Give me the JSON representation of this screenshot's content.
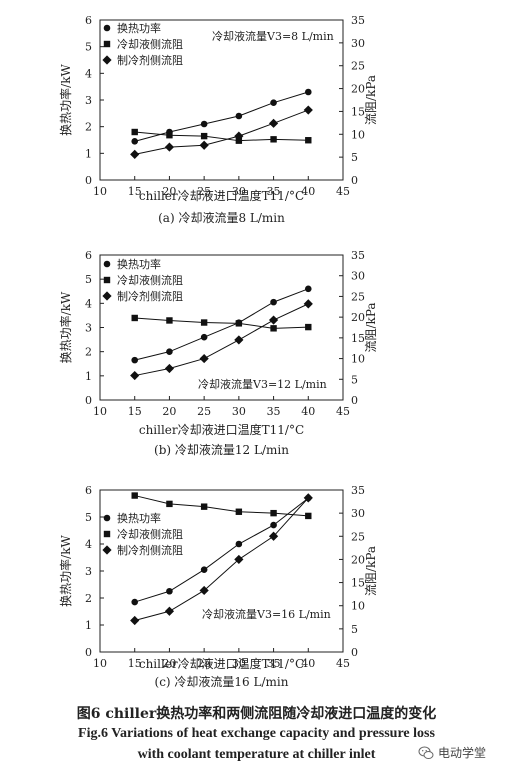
{
  "chart_data": [
    {
      "type": "line",
      "subtitle": "(a) 冷却液流量8 L/min",
      "xlabel": "chiller冷却液进口温度T11/°C",
      "ylabel_left": "换热功率/kW",
      "ylabel_right": "流阻/kPa",
      "annotation": "冷却液流量V3=8 L/min",
      "x": [
        15,
        20,
        25,
        30,
        35,
        40
      ],
      "xlim": [
        10,
        45
      ],
      "ylim_left": [
        0,
        6
      ],
      "ylim_right": [
        0,
        35
      ],
      "x_ticks": [
        "10",
        "15",
        "20",
        "25",
        "30",
        "35",
        "40",
        "45"
      ],
      "yl_ticks": [
        "0",
        "1",
        "2",
        "3",
        "4",
        "5",
        "6"
      ],
      "yr_ticks": [
        "0",
        "5",
        "10",
        "15",
        "20",
        "25",
        "30",
        "35"
      ],
      "legend_position": "top-left",
      "series": [
        {
          "name": "换热功率",
          "marker": "circle",
          "axis": "left",
          "values": [
            1.45,
            1.8,
            2.1,
            2.4,
            2.9,
            3.3
          ]
        },
        {
          "name": "冷却液侧流阻",
          "marker": "square",
          "axis": "right",
          "values": [
            10.5,
            9.8,
            9.6,
            8.6,
            8.9,
            8.7
          ]
        },
        {
          "name": "制冷剂侧流阻",
          "marker": "diamond",
          "axis": "right",
          "values": [
            5.6,
            7.2,
            7.6,
            9.6,
            12.4,
            15.3
          ]
        }
      ]
    },
    {
      "type": "line",
      "subtitle": "(b) 冷却液流量12 L/min",
      "xlabel": "chiller冷却液进口温度T11/°C",
      "ylabel_left": "换热功率/kW",
      "ylabel_right": "流阻/kPa",
      "annotation": "冷却液流量V3=12 L/min",
      "x": [
        15,
        20,
        25,
        30,
        35,
        40
      ],
      "xlim": [
        10,
        45
      ],
      "ylim_left": [
        0,
        6
      ],
      "ylim_right": [
        0,
        35
      ],
      "x_ticks": [
        "10",
        "15",
        "20",
        "25",
        "30",
        "35",
        "40",
        "45"
      ],
      "yl_ticks": [
        "0",
        "1",
        "2",
        "3",
        "4",
        "5",
        "6"
      ],
      "yr_ticks": [
        "0",
        "5",
        "10",
        "15",
        "20",
        "25",
        "30",
        "35"
      ],
      "legend_position": "top-left",
      "series": [
        {
          "name": "换热功率",
          "marker": "circle",
          "axis": "left",
          "values": [
            1.65,
            2.0,
            2.6,
            3.2,
            4.05,
            4.6
          ]
        },
        {
          "name": "冷却液侧流阻",
          "marker": "square",
          "axis": "right",
          "values": [
            19.8,
            19.2,
            18.7,
            18.5,
            17.3,
            17.6
          ]
        },
        {
          "name": "制冷剂侧流阻",
          "marker": "diamond",
          "axis": "right",
          "values": [
            5.9,
            7.6,
            10.0,
            14.5,
            19.3,
            23.2
          ]
        }
      ]
    },
    {
      "type": "line",
      "subtitle": "(c) 冷却液流量16 L/min",
      "xlabel": "chiller冷却液进口温度T11/°C",
      "ylabel_left": "换热功率/kW",
      "ylabel_right": "流阻/kPa",
      "annotation": "冷却液流量V3=16 L/min",
      "x": [
        15,
        20,
        25,
        30,
        35,
        40
      ],
      "xlim": [
        10,
        45
      ],
      "ylim_left": [
        0,
        6
      ],
      "ylim_right": [
        0,
        35
      ],
      "x_ticks": [
        "10",
        "15",
        "20",
        "25",
        "30",
        "35",
        "40",
        "45"
      ],
      "yl_ticks": [
        "0",
        "1",
        "2",
        "3",
        "4",
        "5",
        "6"
      ],
      "yr_ticks": [
        "0",
        "5",
        "10",
        "15",
        "20",
        "25",
        "30",
        "35"
      ],
      "legend_position": "middle-left",
      "series": [
        {
          "name": "换热功率",
          "marker": "circle",
          "axis": "left",
          "values": [
            1.85,
            2.25,
            3.05,
            4.0,
            4.7,
            5.7
          ]
        },
        {
          "name": "冷却液侧流阻",
          "marker": "square",
          "axis": "right",
          "values": [
            33.8,
            32.0,
            31.4,
            30.3,
            30.0,
            29.4
          ]
        },
        {
          "name": "制冷剂侧流阻",
          "marker": "diamond",
          "axis": "right",
          "values": [
            6.8,
            8.8,
            13.3,
            20.0,
            25.0,
            33.3
          ]
        }
      ]
    }
  ],
  "figure": {
    "caption_zh": "图6   chiller换热功率和两侧流阻随冷却液进口温度的变化",
    "caption_en_line1": "Fig.6   Variations of heat exchange capacity and pressure loss",
    "caption_en_line2": "with coolant temperature at chiller inlet"
  },
  "watermark": {
    "text": "电动学堂",
    "icon": "wechat-icon"
  }
}
